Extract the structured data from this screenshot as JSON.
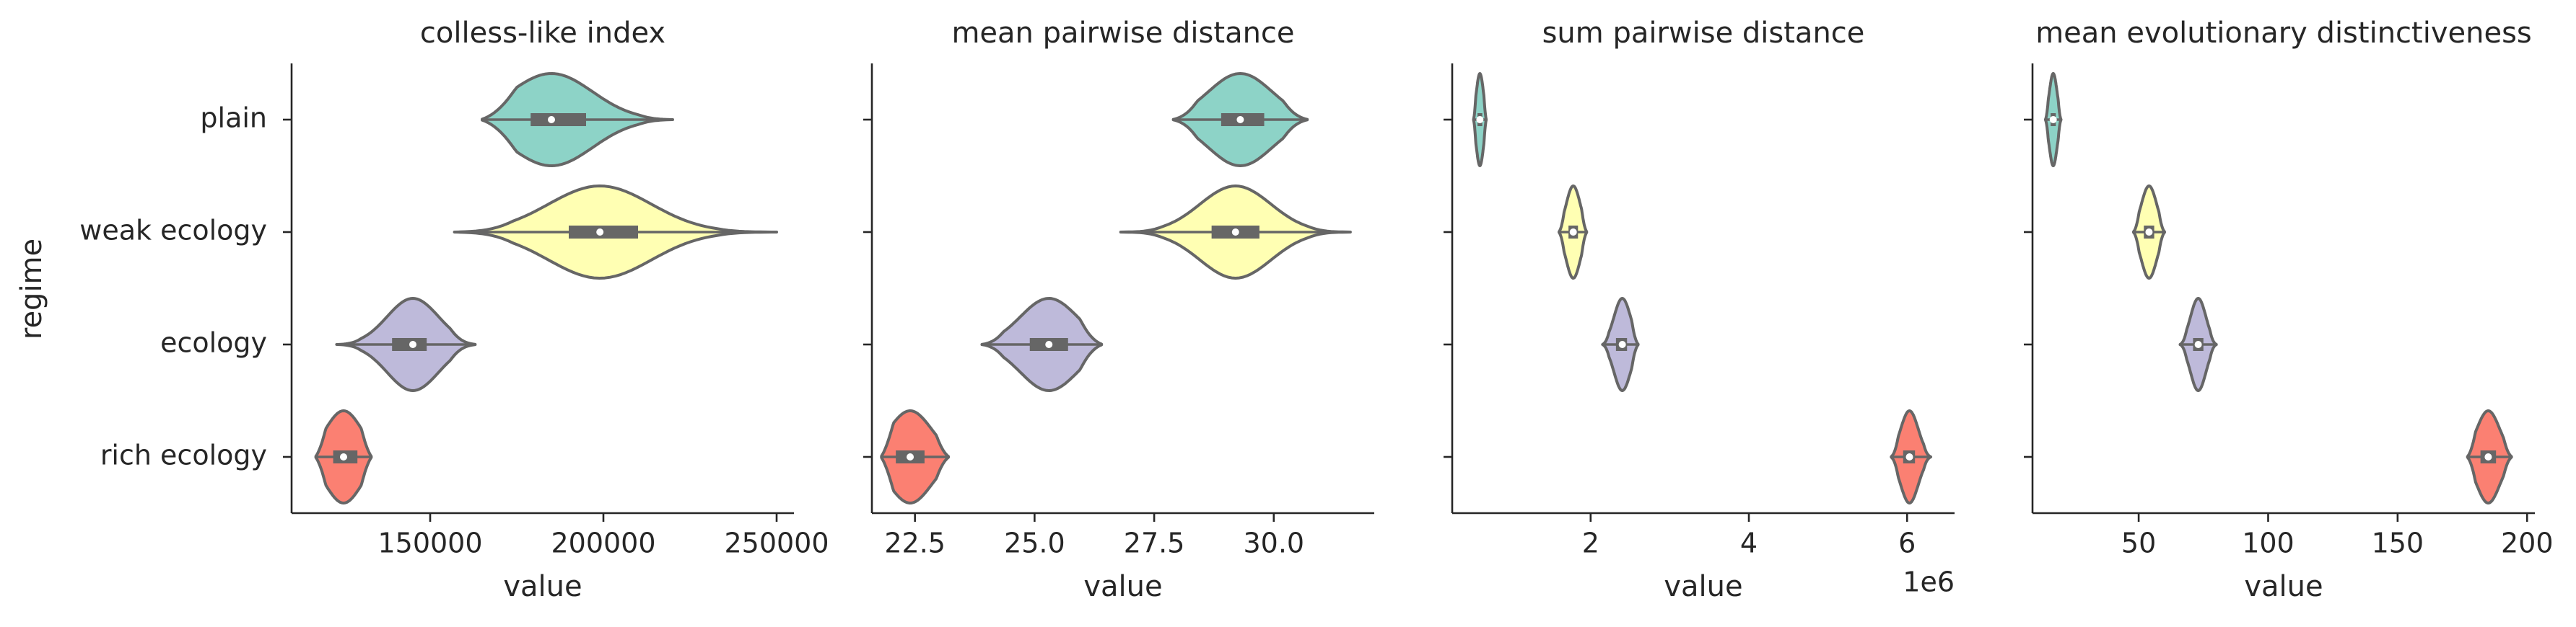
{
  "chart_data": {
    "type": "violin",
    "ylabel": "regime",
    "categories": [
      "plain",
      "weak ecology",
      "ecology",
      "rich ecology"
    ],
    "colors": {
      "plain": "#8dd3c7",
      "weak ecology": "#ffffb3",
      "ecology": "#bebada",
      "rich ecology": "#fb8072",
      "outline": "#666666",
      "axis": "#262626",
      "median": "#ffffff"
    },
    "panels": [
      {
        "title": "colless-like index",
        "xlabel": "value",
        "offset_label": "",
        "xlim": [
          110000,
          255000
        ],
        "xticks": [
          150000,
          200000,
          250000
        ],
        "xtick_labels": [
          "150000",
          "200000",
          "250000"
        ],
        "series": [
          {
            "name": "plain",
            "min": 165000,
            "q1": 179000,
            "median": 185000,
            "q3": 195000,
            "max": 220000
          },
          {
            "name": "weak ecology",
            "min": 157000,
            "q1": 190000,
            "median": 199000,
            "q3": 210000,
            "max": 250000
          },
          {
            "name": "ecology",
            "min": 123000,
            "q1": 139000,
            "median": 145000,
            "q3": 149000,
            "max": 163000
          },
          {
            "name": "rich ecology",
            "min": 117000,
            "q1": 122000,
            "median": 125000,
            "q3": 129000,
            "max": 133000
          }
        ]
      },
      {
        "title": "mean pairwise distance",
        "xlabel": "value",
        "offset_label": "",
        "xlim": [
          21.6,
          32.1
        ],
        "xticks": [
          22.5,
          25.0,
          27.5,
          30.0
        ],
        "xtick_labels": [
          "22.5",
          "25.0",
          "27.5",
          "30.0"
        ],
        "series": [
          {
            "name": "plain",
            "min": 27.9,
            "q1": 28.9,
            "median": 29.3,
            "q3": 29.8,
            "max": 30.7
          },
          {
            "name": "weak ecology",
            "min": 26.8,
            "q1": 28.7,
            "median": 29.2,
            "q3": 29.7,
            "max": 31.6
          },
          {
            "name": "ecology",
            "min": 23.9,
            "q1": 24.9,
            "median": 25.3,
            "q3": 25.7,
            "max": 26.4
          },
          {
            "name": "rich ecology",
            "min": 21.8,
            "q1": 22.1,
            "median": 22.4,
            "q3": 22.7,
            "max": 23.2
          }
        ]
      },
      {
        "title": "sum pairwise distance",
        "xlabel": "value",
        "offset_label": "1e6",
        "xlim": [
          0.25,
          6.6
        ],
        "xticks": [
          2,
          4,
          6
        ],
        "xtick_labels": [
          "2",
          "4",
          "6"
        ],
        "series": [
          {
            "name": "plain",
            "min": 0.52,
            "q1": 0.57,
            "median": 0.6,
            "q3": 0.63,
            "max": 0.68
          },
          {
            "name": "weak ecology",
            "min": 1.6,
            "q1": 1.72,
            "median": 1.78,
            "q3": 1.84,
            "max": 1.95
          },
          {
            "name": "ecology",
            "min": 2.15,
            "q1": 2.32,
            "median": 2.4,
            "q3": 2.46,
            "max": 2.6
          },
          {
            "name": "rich ecology",
            "min": 5.8,
            "q1": 5.95,
            "median": 6.03,
            "q3": 6.1,
            "max": 6.3
          }
        ]
      },
      {
        "title": "mean evolutionary distinctiveness",
        "xlabel": "value",
        "offset_label": "",
        "xlim": [
          9,
          203
        ],
        "xticks": [
          50,
          100,
          150,
          200
        ],
        "xtick_labels": [
          "50",
          "100",
          "150",
          "200"
        ],
        "series": [
          {
            "name": "plain",
            "min": 14,
            "q1": 16,
            "median": 17,
            "q3": 18,
            "max": 20
          },
          {
            "name": "weak ecology",
            "min": 48,
            "q1": 52,
            "median": 54,
            "q3": 56,
            "max": 60
          },
          {
            "name": "ecology",
            "min": 66,
            "q1": 71,
            "median": 73,
            "q3": 75,
            "max": 80
          },
          {
            "name": "rich ecology",
            "min": 177,
            "q1": 182,
            "median": 185,
            "q3": 188,
            "max": 194
          }
        ]
      }
    ]
  }
}
